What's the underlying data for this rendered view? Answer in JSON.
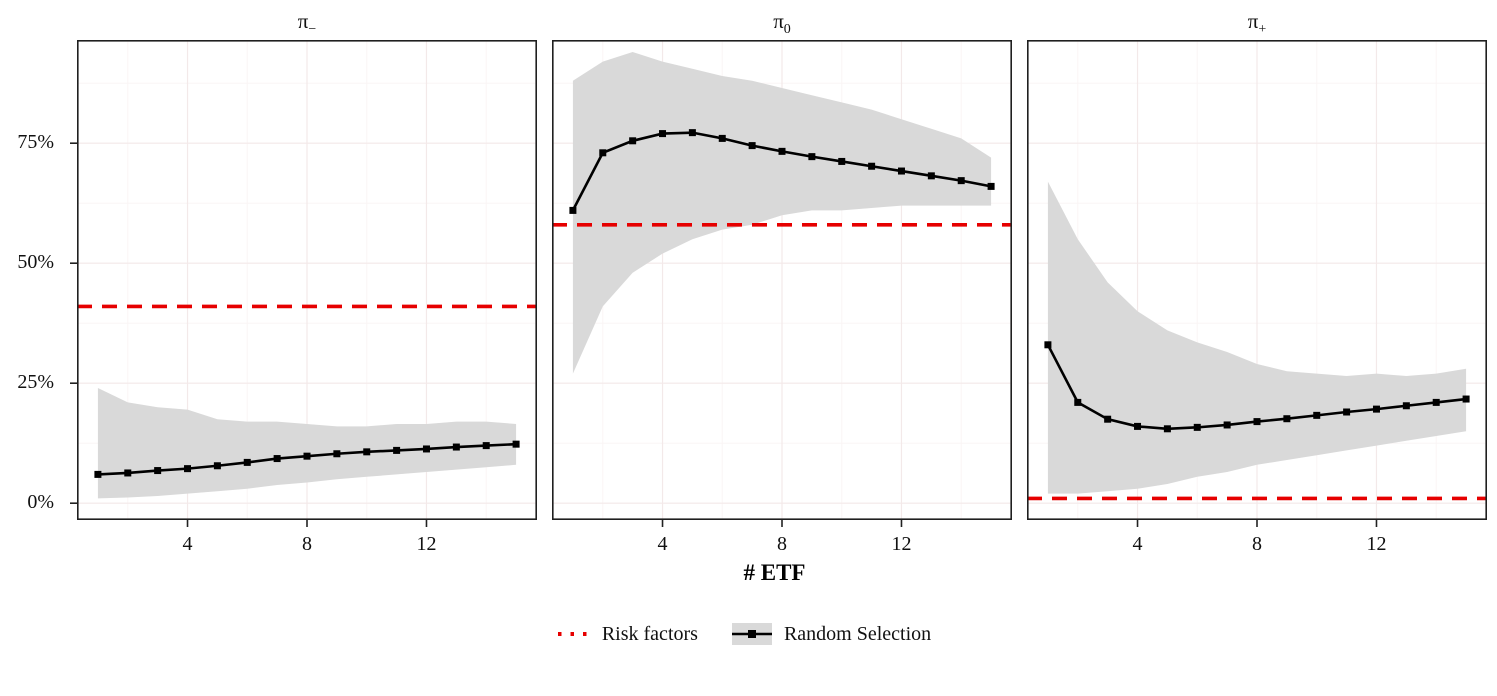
{
  "chart_data": {
    "type": "line",
    "xlabel": "# ETF",
    "x": [
      1,
      2,
      3,
      4,
      5,
      6,
      7,
      8,
      9,
      10,
      11,
      12,
      13,
      14,
      15
    ],
    "xlim": [
      0.3,
      15.7
    ],
    "ylim": [
      -3.5,
      96.5
    ],
    "x_ticks": [
      4,
      8,
      12
    ],
    "x_minor": [
      2,
      6,
      10,
      14
    ],
    "y_ticks": [
      0,
      25,
      50,
      75
    ],
    "y_tick_labels": [
      "0%",
      "25%",
      "50%",
      "75%"
    ],
    "y_minor": [
      12.5,
      37.5,
      62.5,
      87.5
    ],
    "grid": "on",
    "legend_position": "bottom",
    "facets": [
      {
        "title_base": "π",
        "title_sub": "−",
        "hline": 41,
        "y": [
          6.0,
          6.3,
          6.8,
          7.2,
          7.8,
          8.5,
          9.3,
          9.8,
          10.3,
          10.7,
          11.0,
          11.3,
          11.7,
          12.0,
          12.3
        ],
        "low": [
          1.0,
          1.2,
          1.5,
          2.0,
          2.5,
          3.0,
          3.8,
          4.3,
          5.0,
          5.5,
          6.0,
          6.5,
          7.0,
          7.5,
          8.0
        ],
        "high": [
          24.0,
          21.0,
          20.0,
          19.5,
          17.5,
          17.0,
          17.0,
          16.5,
          16.0,
          16.0,
          16.5,
          16.5,
          17.0,
          17.0,
          16.5
        ]
      },
      {
        "title_base": "π",
        "title_sub": "0",
        "hline": 58,
        "y": [
          61.0,
          73.0,
          75.5,
          77.0,
          77.2,
          76.0,
          74.5,
          73.3,
          72.2,
          71.2,
          70.2,
          69.2,
          68.2,
          67.2,
          66.0
        ],
        "low": [
          27.0,
          41.0,
          48.0,
          52.0,
          55.0,
          57.0,
          58.0,
          60.0,
          61.0,
          61.0,
          61.5,
          62.0,
          62.0,
          62.0,
          62.0
        ],
        "high": [
          88.0,
          92.0,
          94.0,
          92.0,
          90.5,
          89.0,
          88.0,
          86.5,
          85.0,
          83.5,
          82.0,
          80.0,
          78.0,
          76.0,
          72.0
        ]
      },
      {
        "title_base": "π",
        "title_sub": "+",
        "hline": 1,
        "y": [
          33.0,
          21.0,
          17.5,
          16.0,
          15.5,
          15.8,
          16.3,
          17.0,
          17.6,
          18.3,
          19.0,
          19.6,
          20.3,
          21.0,
          21.7
        ],
        "low": [
          2.0,
          2.0,
          2.5,
          3.0,
          4.0,
          5.5,
          6.5,
          8.0,
          9.0,
          10.0,
          11.0,
          12.0,
          13.0,
          14.0,
          15.0
        ],
        "high": [
          67.0,
          55.0,
          46.0,
          40.0,
          36.0,
          33.5,
          31.5,
          29.0,
          27.5,
          27.0,
          26.5,
          27.0,
          26.5,
          27.0,
          28.0
        ]
      }
    ],
    "legend": [
      {
        "label": "Risk factors",
        "style": "red-dashed-line"
      },
      {
        "label": "Random Selection",
        "style": "black-line-square-marker-gray-ribbon"
      }
    ],
    "colors": {
      "line": "#000000",
      "marker": "#000000",
      "ribbon": "#d9d9d9",
      "hline": "#e60000",
      "border": "#1f1f1f",
      "grid_major": "#f3e9e9",
      "grid_minor": "#faf5f5"
    }
  }
}
